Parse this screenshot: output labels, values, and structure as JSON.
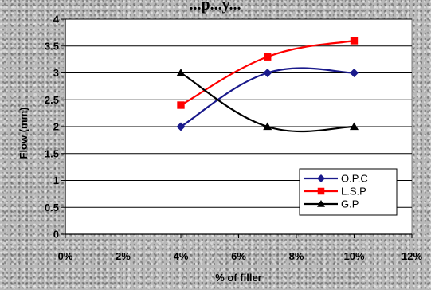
{
  "chart_data": {
    "type": "line",
    "title": "...p...y...",
    "xlabel": "% of filler",
    "ylabel": "Flow (mm)",
    "x_ticks": [
      "0%",
      "2%",
      "4%",
      "6%",
      "8%",
      "10%",
      "12%"
    ],
    "y_ticks": [
      "0",
      "0.5",
      "1",
      "1.5",
      "2",
      "2.5",
      "3",
      "3.5",
      "4"
    ],
    "xlim": [
      0,
      12
    ],
    "ylim": [
      0,
      4
    ],
    "grid": "horizontal",
    "legend_position": "bottom-right",
    "x": [
      4,
      7,
      10
    ],
    "series": [
      {
        "name": "O.P.C",
        "values": [
          2.0,
          3.0,
          3.0
        ],
        "color": "#1a1a8c",
        "marker": "diamond"
      },
      {
        "name": "L.S.P",
        "values": [
          2.4,
          3.3,
          3.6
        ],
        "color": "#ff0000",
        "marker": "square"
      },
      {
        "name": "G.P",
        "values": [
          3.0,
          2.0,
          2.0
        ],
        "color": "#000000",
        "marker": "triangle"
      }
    ]
  }
}
